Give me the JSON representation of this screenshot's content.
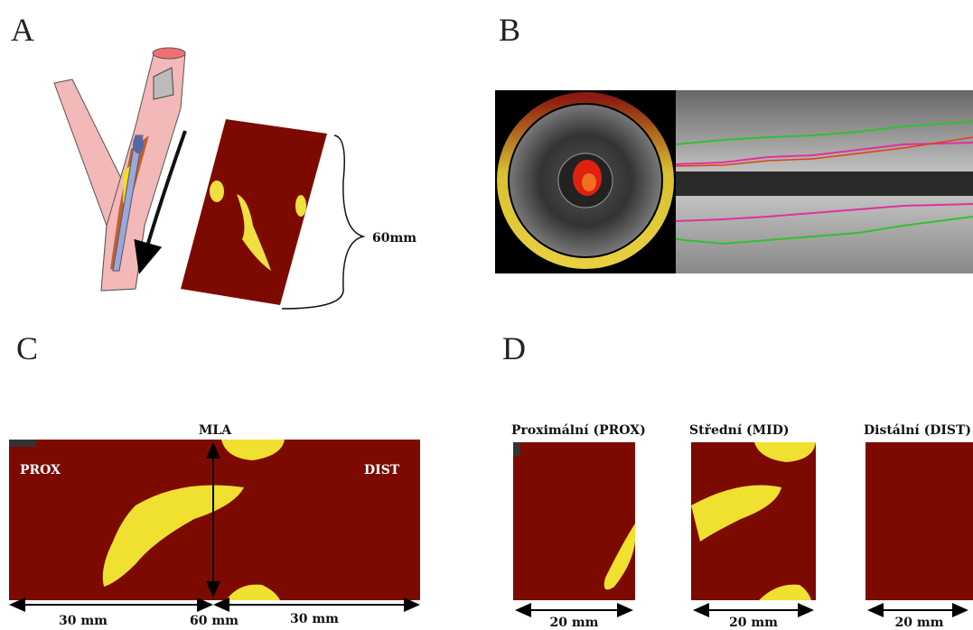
{
  "panels": {
    "a": {
      "label": "A",
      "length_label": "60mm"
    },
    "b": {
      "label": "B"
    },
    "c": {
      "label": "C",
      "mla": "MLA",
      "prox": "PROX",
      "dist": "DIST",
      "left_length": "30 mm",
      "total_length": "60 mm",
      "right_length": "30 mm"
    },
    "d": {
      "label": "D",
      "segments": [
        {
          "title": "Proximální  (PROX)",
          "length": "20 mm"
        },
        {
          "title": "Střední (MID)",
          "length": "20 mm"
        },
        {
          "title": "Distální (DIST)",
          "length": "20 mm"
        }
      ]
    }
  }
}
